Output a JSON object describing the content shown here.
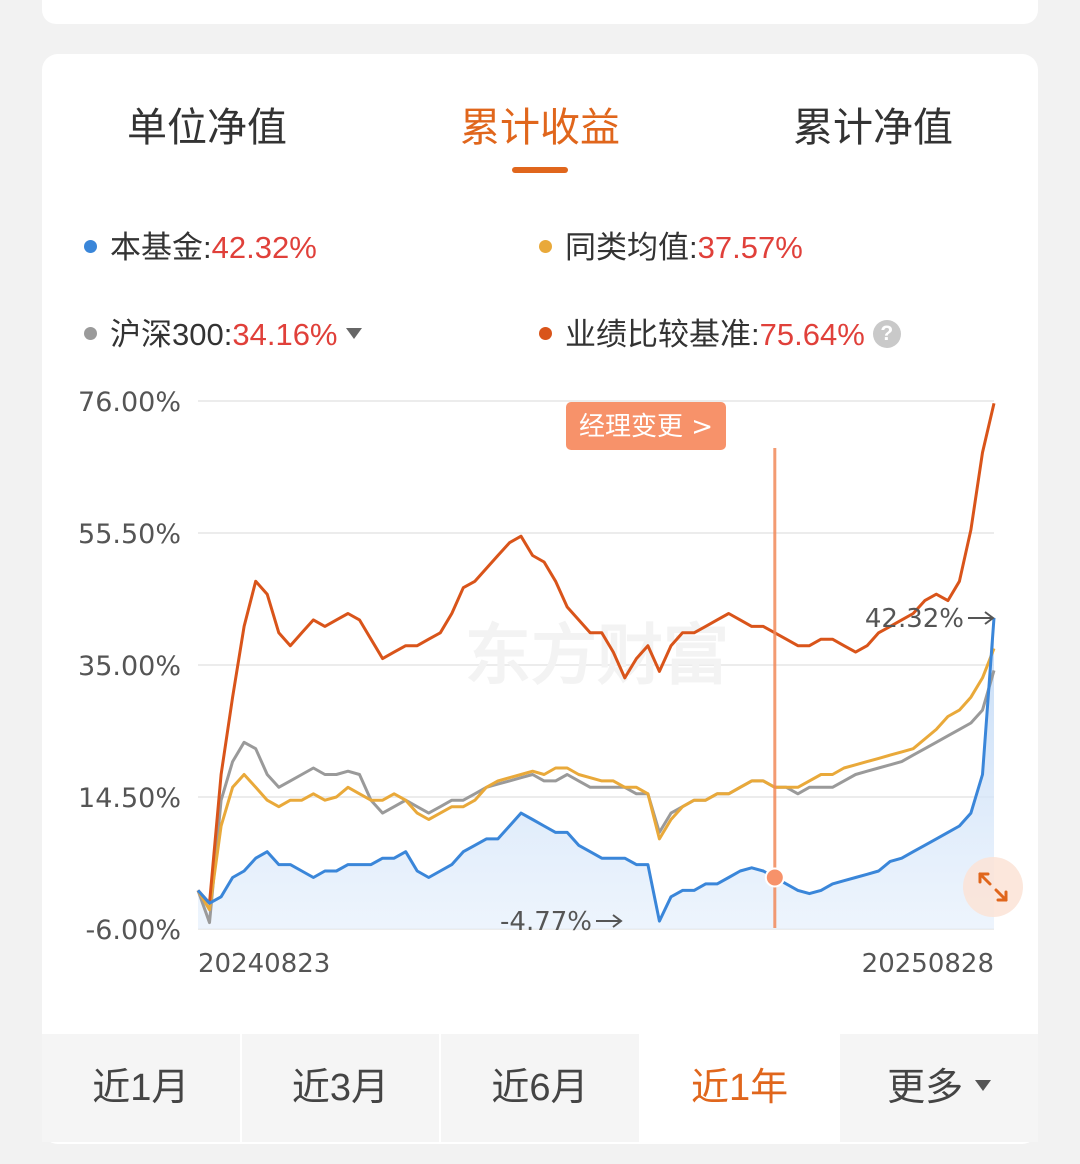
{
  "tabs": [
    {
      "label": "单位净值",
      "active": false
    },
    {
      "label": "累计收益",
      "active": true
    },
    {
      "label": "累计净值",
      "active": false
    }
  ],
  "legend": [
    {
      "name": "本基金",
      "value": "42.32%",
      "color": "#3a86d9"
    },
    {
      "name": "同类均值",
      "value": "37.57%",
      "color": "#e9a93a"
    },
    {
      "name": "沪深300",
      "value": "34.16%",
      "color": "#9a9a9a"
    },
    {
      "name": "业绩比较基准",
      "value": "75.64%",
      "color": "#d9541a"
    }
  ],
  "chart": {
    "manager_change_label": "经理变更 >",
    "max_label": "42.32%",
    "min_label": "-4.77%",
    "watermark": "东方财富"
  },
  "periods": [
    {
      "label": "近1月",
      "active": false
    },
    {
      "label": "近3月",
      "active": false
    },
    {
      "label": "近6月",
      "active": false
    },
    {
      "label": "近1年",
      "active": true
    },
    {
      "label": "更多",
      "active": false
    }
  ],
  "chart_data": {
    "type": "line",
    "title": "",
    "xlabel": "",
    "ylabel": "",
    "x_start_label": "20240823",
    "x_end_label": "20250828",
    "y_ticks": [
      "76.00%",
      "55.50%",
      "35.00%",
      "14.50%",
      "-6.00%"
    ],
    "ylim": [
      -6.0,
      76.0
    ],
    "grid": true,
    "manager_change_index": 50,
    "x": [
      0,
      1,
      2,
      3,
      4,
      5,
      6,
      7,
      8,
      9,
      10,
      11,
      12,
      13,
      14,
      15,
      16,
      17,
      18,
      19,
      20,
      21,
      22,
      23,
      24,
      25,
      26,
      27,
      28,
      29,
      30,
      31,
      32,
      33,
      34,
      35,
      36,
      37,
      38,
      39,
      40,
      41,
      42,
      43,
      44,
      45,
      46,
      47,
      48,
      49,
      50,
      51,
      52,
      53,
      54,
      55,
      56,
      57,
      58,
      59,
      60,
      61,
      62,
      63,
      64,
      65,
      66,
      67,
      68,
      69
    ],
    "series": [
      {
        "name": "本基金",
        "color": "#3a86d9",
        "fill": true,
        "values": [
          0.0,
          -2.0,
          -1.0,
          2.0,
          3.0,
          5.0,
          6.0,
          4.0,
          4.0,
          3.0,
          2.0,
          3.0,
          3.0,
          4.0,
          4.0,
          4.0,
          5.0,
          5.0,
          6.0,
          3.0,
          2.0,
          3.0,
          4.0,
          6.0,
          7.0,
          8.0,
          8.0,
          10.0,
          12.0,
          11.0,
          10.0,
          9.0,
          9.0,
          7.0,
          6.0,
          5.0,
          5.0,
          5.0,
          4.0,
          4.0,
          -4.77,
          -1.0,
          0.0,
          0.0,
          1.0,
          1.0,
          2.0,
          3.0,
          3.5,
          3.0,
          2.0,
          1.0,
          0.0,
          -0.5,
          0.0,
          1.0,
          1.5,
          2.0,
          2.5,
          3.0,
          4.5,
          5.0,
          6.0,
          7.0,
          8.0,
          9.0,
          10.0,
          12.0,
          18.0,
          42.32
        ]
      },
      {
        "name": "同类均值",
        "color": "#e9a93a",
        "fill": false,
        "values": [
          0.0,
          -3.0,
          10.0,
          16.0,
          18.0,
          16.0,
          14.0,
          13.0,
          14.0,
          14.0,
          15.0,
          14.0,
          14.5,
          16.0,
          15.0,
          14.0,
          14.0,
          15.0,
          14.0,
          12.0,
          11.0,
          12.0,
          13.0,
          13.0,
          14.0,
          16.0,
          17.0,
          17.5,
          18.0,
          18.5,
          18.0,
          19.0,
          19.0,
          18.0,
          17.5,
          17.0,
          17.0,
          16.0,
          16.0,
          15.0,
          8.0,
          11.0,
          13.0,
          14.0,
          14.0,
          15.0,
          15.0,
          16.0,
          17.0,
          17.0,
          16.0,
          16.0,
          16.0,
          17.0,
          18.0,
          18.0,
          19.0,
          19.5,
          20.0,
          20.5,
          21.0,
          21.5,
          22.0,
          23.5,
          25.0,
          27.0,
          28.0,
          30.0,
          33.0,
          37.57
        ]
      },
      {
        "name": "沪深300",
        "color": "#9a9a9a",
        "fill": false,
        "values": [
          0.0,
          -5.0,
          14.0,
          20.0,
          23.0,
          22.0,
          18.0,
          16.0,
          17.0,
          18.0,
          19.0,
          18.0,
          18.0,
          18.5,
          18.0,
          14.0,
          12.0,
          13.0,
          14.0,
          13.0,
          12.0,
          13.0,
          14.0,
          14.0,
          15.0,
          16.0,
          16.5,
          17.0,
          17.5,
          18.0,
          17.0,
          17.0,
          18.0,
          17.0,
          16.0,
          16.0,
          16.0,
          16.0,
          15.0,
          15.0,
          9.0,
          12.0,
          13.0,
          14.0,
          14.0,
          15.0,
          15.0,
          16.0,
          17.0,
          17.0,
          16.0,
          16.0,
          15.0,
          16.0,
          16.0,
          16.0,
          17.0,
          18.0,
          18.5,
          19.0,
          19.5,
          20.0,
          21.0,
          22.0,
          23.0,
          24.0,
          25.0,
          26.0,
          28.0,
          34.16
        ]
      },
      {
        "name": "业绩比较基准",
        "color": "#d9541a",
        "fill": false,
        "values": [
          0.0,
          -2.0,
          18.0,
          30.0,
          41.0,
          48.0,
          46.0,
          40.0,
          38.0,
          40.0,
          42.0,
          41.0,
          42.0,
          43.0,
          42.0,
          39.0,
          36.0,
          37.0,
          38.0,
          38.0,
          39.0,
          40.0,
          43.0,
          47.0,
          48.0,
          50.0,
          52.0,
          54.0,
          55.0,
          52.0,
          51.0,
          48.0,
          44.0,
          42.0,
          40.0,
          40.0,
          37.0,
          33.0,
          36.0,
          38.0,
          34.0,
          38.0,
          40.0,
          40.0,
          41.0,
          42.0,
          43.0,
          42.0,
          41.0,
          41.0,
          40.0,
          39.0,
          38.0,
          38.0,
          39.0,
          39.0,
          38.0,
          37.0,
          38.0,
          40.0,
          41.0,
          42.0,
          43.0,
          45.0,
          46.0,
          45.0,
          48.0,
          56.0,
          68.0,
          75.64
        ]
      }
    ]
  }
}
